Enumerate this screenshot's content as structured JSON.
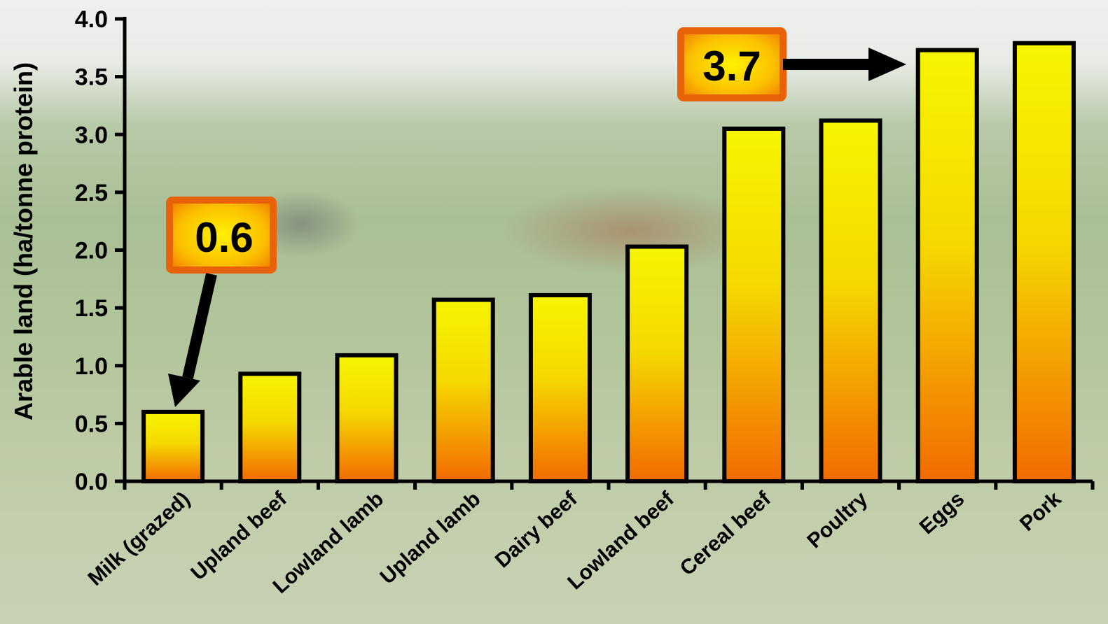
{
  "chart_data": {
    "type": "bar",
    "title": "",
    "xlabel": "",
    "ylabel": "Arable land (ha/tonne protein)",
    "ylim": [
      0,
      4.0
    ],
    "yticks": [
      "0.0",
      "0.5",
      "1.0",
      "1.5",
      "2.0",
      "2.5",
      "3.0",
      "3.5",
      "4.0"
    ],
    "categories": [
      "Milk (grazed)",
      "Upland beef",
      "Lowland lamb",
      "Upland lamb",
      "Dairy beef",
      "Lowland beef",
      "Cereal beef",
      "Poultry",
      "Eggs",
      "Pork"
    ],
    "values": [
      0.6,
      0.93,
      1.09,
      1.57,
      1.61,
      2.03,
      3.05,
      3.12,
      3.73,
      3.79
    ],
    "grid": false,
    "bar_gradient": {
      "top": "#f6f500",
      "bottom": "#f26a00"
    },
    "annotations": [
      {
        "text": "0.6",
        "target_category": "Milk (grazed)"
      },
      {
        "text": "3.7",
        "target_category": "Eggs"
      }
    ],
    "background": "photo of cattle grazing"
  }
}
